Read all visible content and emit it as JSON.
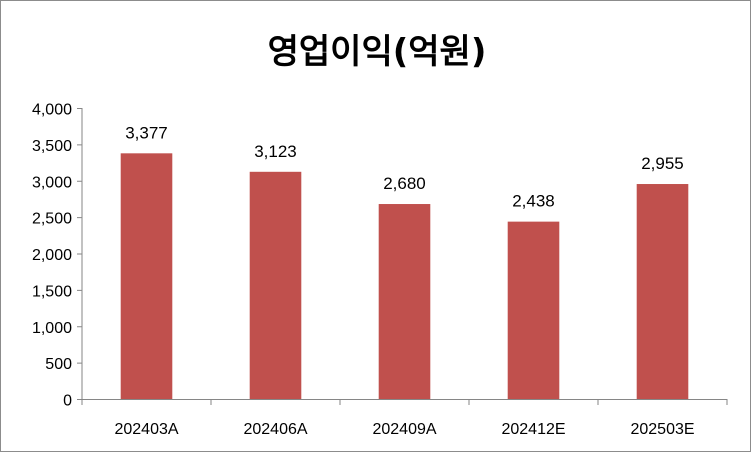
{
  "chart_data": {
    "type": "bar",
    "title": "영업이익(억원)",
    "categories": [
      "202403A",
      "202406A",
      "202409A",
      "202412E",
      "202503E"
    ],
    "values": [
      3377,
      3123,
      2680,
      2438,
      2955
    ],
    "value_labels": [
      "3,377",
      "3,123",
      "2,680",
      "2,438",
      "2,955"
    ],
    "ylim": [
      0,
      4000
    ],
    "yticks": [
      0,
      500,
      1000,
      1500,
      2000,
      2500,
      3000,
      3500,
      4000
    ],
    "ytick_labels": [
      "0",
      "500",
      "1,000",
      "1,500",
      "2,000",
      "2,500",
      "3,000",
      "3,500",
      "4,000"
    ],
    "xlabel": "",
    "ylabel": "",
    "grid": false,
    "legend": "none",
    "bar_color": "#c0504d"
  }
}
